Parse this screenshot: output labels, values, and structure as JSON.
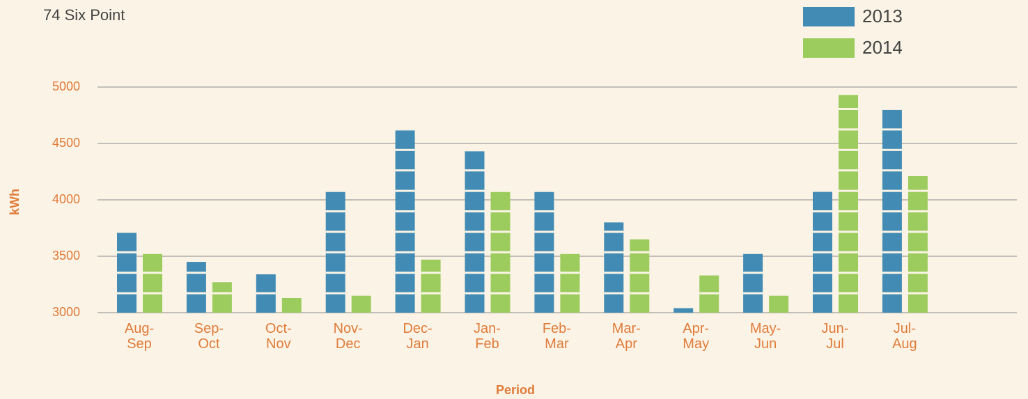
{
  "chart_data": {
    "type": "bar",
    "title": "74 Six Point",
    "x_label": "Period",
    "y_label": "kWh",
    "categories": [
      "Aug-\nSep",
      "Sep-\nOct",
      "Oct-\nNov",
      "Nov-\nDec",
      "Dec-\nJan",
      "Jan-\nFeb",
      "Feb-\nMar",
      "Mar-\nApr",
      "Apr-\nMay",
      "May-\nJun",
      "Jun-\nJul",
      "Jul-\nAug"
    ],
    "series": [
      {
        "name": "2013",
        "color": "#428bb4",
        "values": [
          3710,
          3450,
          3340,
          4070,
          4620,
          4430,
          4070,
          3800,
          3040,
          3520,
          4080,
          4800
        ]
      },
      {
        "name": "2014",
        "color": "#9ccc5e",
        "values": [
          3520,
          3270,
          3130,
          3150,
          3470,
          4070,
          3520,
          3650,
          3330,
          3150,
          4930,
          4210
        ]
      }
    ],
    "ylim": [
      3000,
      5000
    ],
    "yticks": [
      3000,
      3500,
      4000,
      4500,
      5000
    ],
    "grid": true,
    "legend": "top-right"
  }
}
